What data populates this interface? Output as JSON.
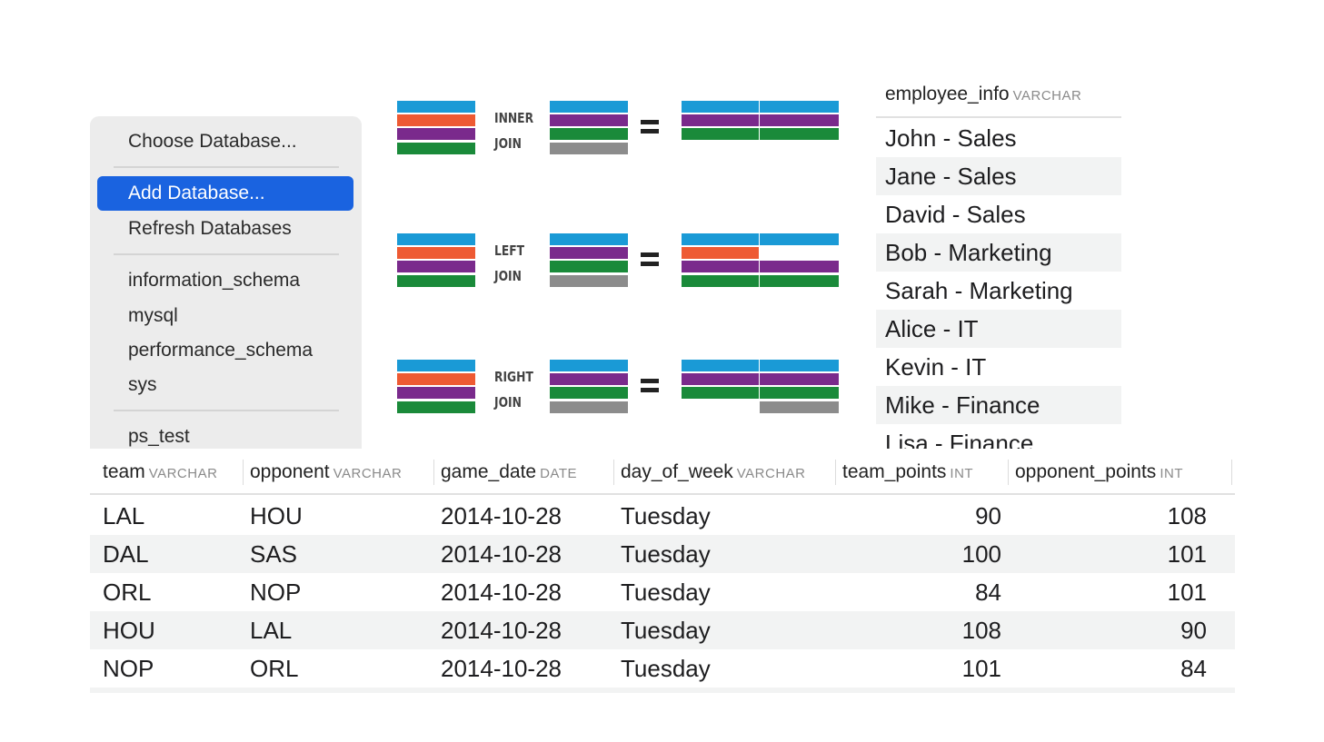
{
  "db_menu": {
    "items": [
      {
        "label": "Choose Database..."
      },
      {
        "label": "Add Database..."
      },
      {
        "label": "Refresh Databases"
      },
      {
        "label": "information_schema"
      },
      {
        "label": "mysql"
      },
      {
        "label": "performance_schema"
      },
      {
        "label": "sys"
      },
      {
        "label": "ps_test"
      }
    ],
    "highlighted_item": "Add Database..."
  },
  "join_diagrams": [
    {
      "line1": "INNER",
      "line2": "JOIN"
    },
    {
      "line1": "LEFT",
      "line2": "JOIN"
    },
    {
      "line1": "RIGHT",
      "line2": "JOIN"
    }
  ],
  "join_colors": {
    "blue": "#1a9ad6",
    "orange": "#ee5a33",
    "purple": "#7a2a8c",
    "green": "#1a8a3a",
    "gray": "#8c8c8c"
  },
  "employee_table": {
    "column": {
      "name": "employee_info",
      "type": "VARCHAR"
    },
    "rows": [
      "John - Sales",
      "Jane - Sales",
      "David - Sales",
      "Bob - Marketing",
      "Sarah - Marketing",
      "Alice - IT",
      "Kevin - IT",
      "Mike - Finance",
      "Lisa - Finance"
    ]
  },
  "games_table": {
    "columns": [
      {
        "name": "team",
        "type": "VARCHAR"
      },
      {
        "name": "opponent",
        "type": "VARCHAR"
      },
      {
        "name": "game_date",
        "type": "DATE"
      },
      {
        "name": "day_of_week",
        "type": "VARCHAR"
      },
      {
        "name": "team_points",
        "type": "INT"
      },
      {
        "name": "opponent_points",
        "type": "INT"
      }
    ],
    "rows": [
      [
        "LAL",
        "HOU",
        "2014-10-28",
        "Tuesday",
        "90",
        "108"
      ],
      [
        "DAL",
        "SAS",
        "2014-10-28",
        "Tuesday",
        "100",
        "101"
      ],
      [
        "ORL",
        "NOP",
        "2014-10-28",
        "Tuesday",
        "84",
        "101"
      ],
      [
        "HOU",
        "LAL",
        "2014-10-28",
        "Tuesday",
        "108",
        "90"
      ],
      [
        "NOP",
        "ORL",
        "2014-10-28",
        "Tuesday",
        "101",
        "84"
      ]
    ]
  }
}
